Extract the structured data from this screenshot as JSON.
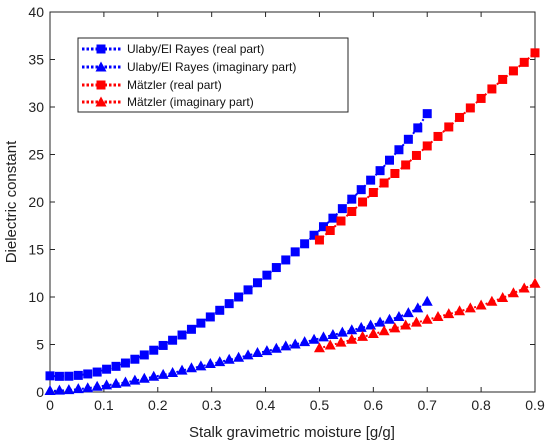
{
  "chart_data": {
    "type": "line",
    "xlabel": "Stalk gravimetric moisture [g/g]",
    "ylabel": "Dielectric constant",
    "xlim": [
      0,
      0.9
    ],
    "ylim": [
      0,
      40
    ],
    "xticks": [
      "0",
      "0.1",
      "0.2",
      "0.3",
      "0.4",
      "0.5",
      "0.6",
      "0.7",
      "0.8",
      "0.9"
    ],
    "yticks": [
      "0",
      "5",
      "10",
      "15",
      "20",
      "25",
      "30",
      "35",
      "40"
    ],
    "grid": false,
    "legend_position": "top-left",
    "series": [
      {
        "name": "Ulaby/El Rayes (real part)",
        "color": "#0000ff",
        "marker": "square",
        "x": [
          0,
          0.0175,
          0.035,
          0.0525,
          0.07,
          0.0875,
          0.105,
          0.1225,
          0.14,
          0.1575,
          0.175,
          0.1925,
          0.21,
          0.2275,
          0.245,
          0.2625,
          0.28,
          0.2975,
          0.315,
          0.3325,
          0.35,
          0.3675,
          0.385,
          0.4025,
          0.42,
          0.4375,
          0.455,
          0.4725,
          0.49,
          0.5075,
          0.525,
          0.5425,
          0.56,
          0.5775,
          0.595,
          0.6125,
          0.63,
          0.6475,
          0.665,
          0.6825,
          0.7
        ],
        "y": [
          1.7,
          1.65,
          1.66,
          1.75,
          1.9,
          2.1,
          2.4,
          2.7,
          3.05,
          3.45,
          3.9,
          4.4,
          4.9,
          5.45,
          6.0,
          6.6,
          7.25,
          7.9,
          8.6,
          9.3,
          10.0,
          10.75,
          11.5,
          12.3,
          13.1,
          13.9,
          14.75,
          15.6,
          16.5,
          17.4,
          18.3,
          19.3,
          20.3,
          21.3,
          22.3,
          23.3,
          24.4,
          25.5,
          26.6,
          27.8,
          29.3
        ]
      },
      {
        "name": "Ulaby/El Rayes (imaginary part)",
        "color": "#0000ff",
        "marker": "triangle",
        "x": [
          0,
          0.0175,
          0.035,
          0.0525,
          0.07,
          0.0875,
          0.105,
          0.1225,
          0.14,
          0.1575,
          0.175,
          0.1925,
          0.21,
          0.2275,
          0.245,
          0.2625,
          0.28,
          0.2975,
          0.315,
          0.3325,
          0.35,
          0.3675,
          0.385,
          0.4025,
          0.42,
          0.4375,
          0.455,
          0.4725,
          0.49,
          0.5075,
          0.525,
          0.5425,
          0.56,
          0.5775,
          0.595,
          0.6125,
          0.63,
          0.6475,
          0.665,
          0.6825,
          0.7
        ],
        "y": [
          0.1,
          0.15,
          0.2,
          0.3,
          0.4,
          0.55,
          0.7,
          0.85,
          1.0,
          1.2,
          1.4,
          1.6,
          1.8,
          2.0,
          2.25,
          2.5,
          2.7,
          2.95,
          3.15,
          3.4,
          3.6,
          3.85,
          4.1,
          4.3,
          4.55,
          4.8,
          5.0,
          5.25,
          5.5,
          5.75,
          6.0,
          6.25,
          6.5,
          6.75,
          7.0,
          7.3,
          7.6,
          7.9,
          8.3,
          8.8,
          9.5
        ]
      },
      {
        "name": "Mätzler (real part)",
        "color": "#ff0000",
        "marker": "square",
        "x": [
          0.5,
          0.52,
          0.54,
          0.56,
          0.58,
          0.6,
          0.62,
          0.64,
          0.66,
          0.68,
          0.7,
          0.72,
          0.74,
          0.76,
          0.78,
          0.8,
          0.82,
          0.84,
          0.86,
          0.88,
          0.9
        ],
        "y": [
          16.0,
          17.0,
          18.0,
          19.0,
          20.0,
          21.0,
          22.0,
          23.0,
          23.9,
          24.9,
          25.9,
          26.9,
          27.9,
          28.9,
          29.9,
          30.9,
          31.9,
          32.9,
          33.8,
          34.7,
          35.7
        ]
      },
      {
        "name": "Mätzler (imaginary part)",
        "color": "#ff0000",
        "marker": "triangle",
        "x": [
          0.5,
          0.52,
          0.54,
          0.56,
          0.58,
          0.6,
          0.62,
          0.64,
          0.66,
          0.68,
          0.7,
          0.72,
          0.74,
          0.76,
          0.78,
          0.8,
          0.82,
          0.84,
          0.86,
          0.88,
          0.9
        ],
        "y": [
          4.6,
          4.9,
          5.2,
          5.5,
          5.8,
          6.1,
          6.4,
          6.7,
          7.0,
          7.3,
          7.6,
          7.9,
          8.2,
          8.5,
          8.8,
          9.1,
          9.5,
          9.9,
          10.4,
          10.9,
          11.4
        ]
      }
    ]
  }
}
